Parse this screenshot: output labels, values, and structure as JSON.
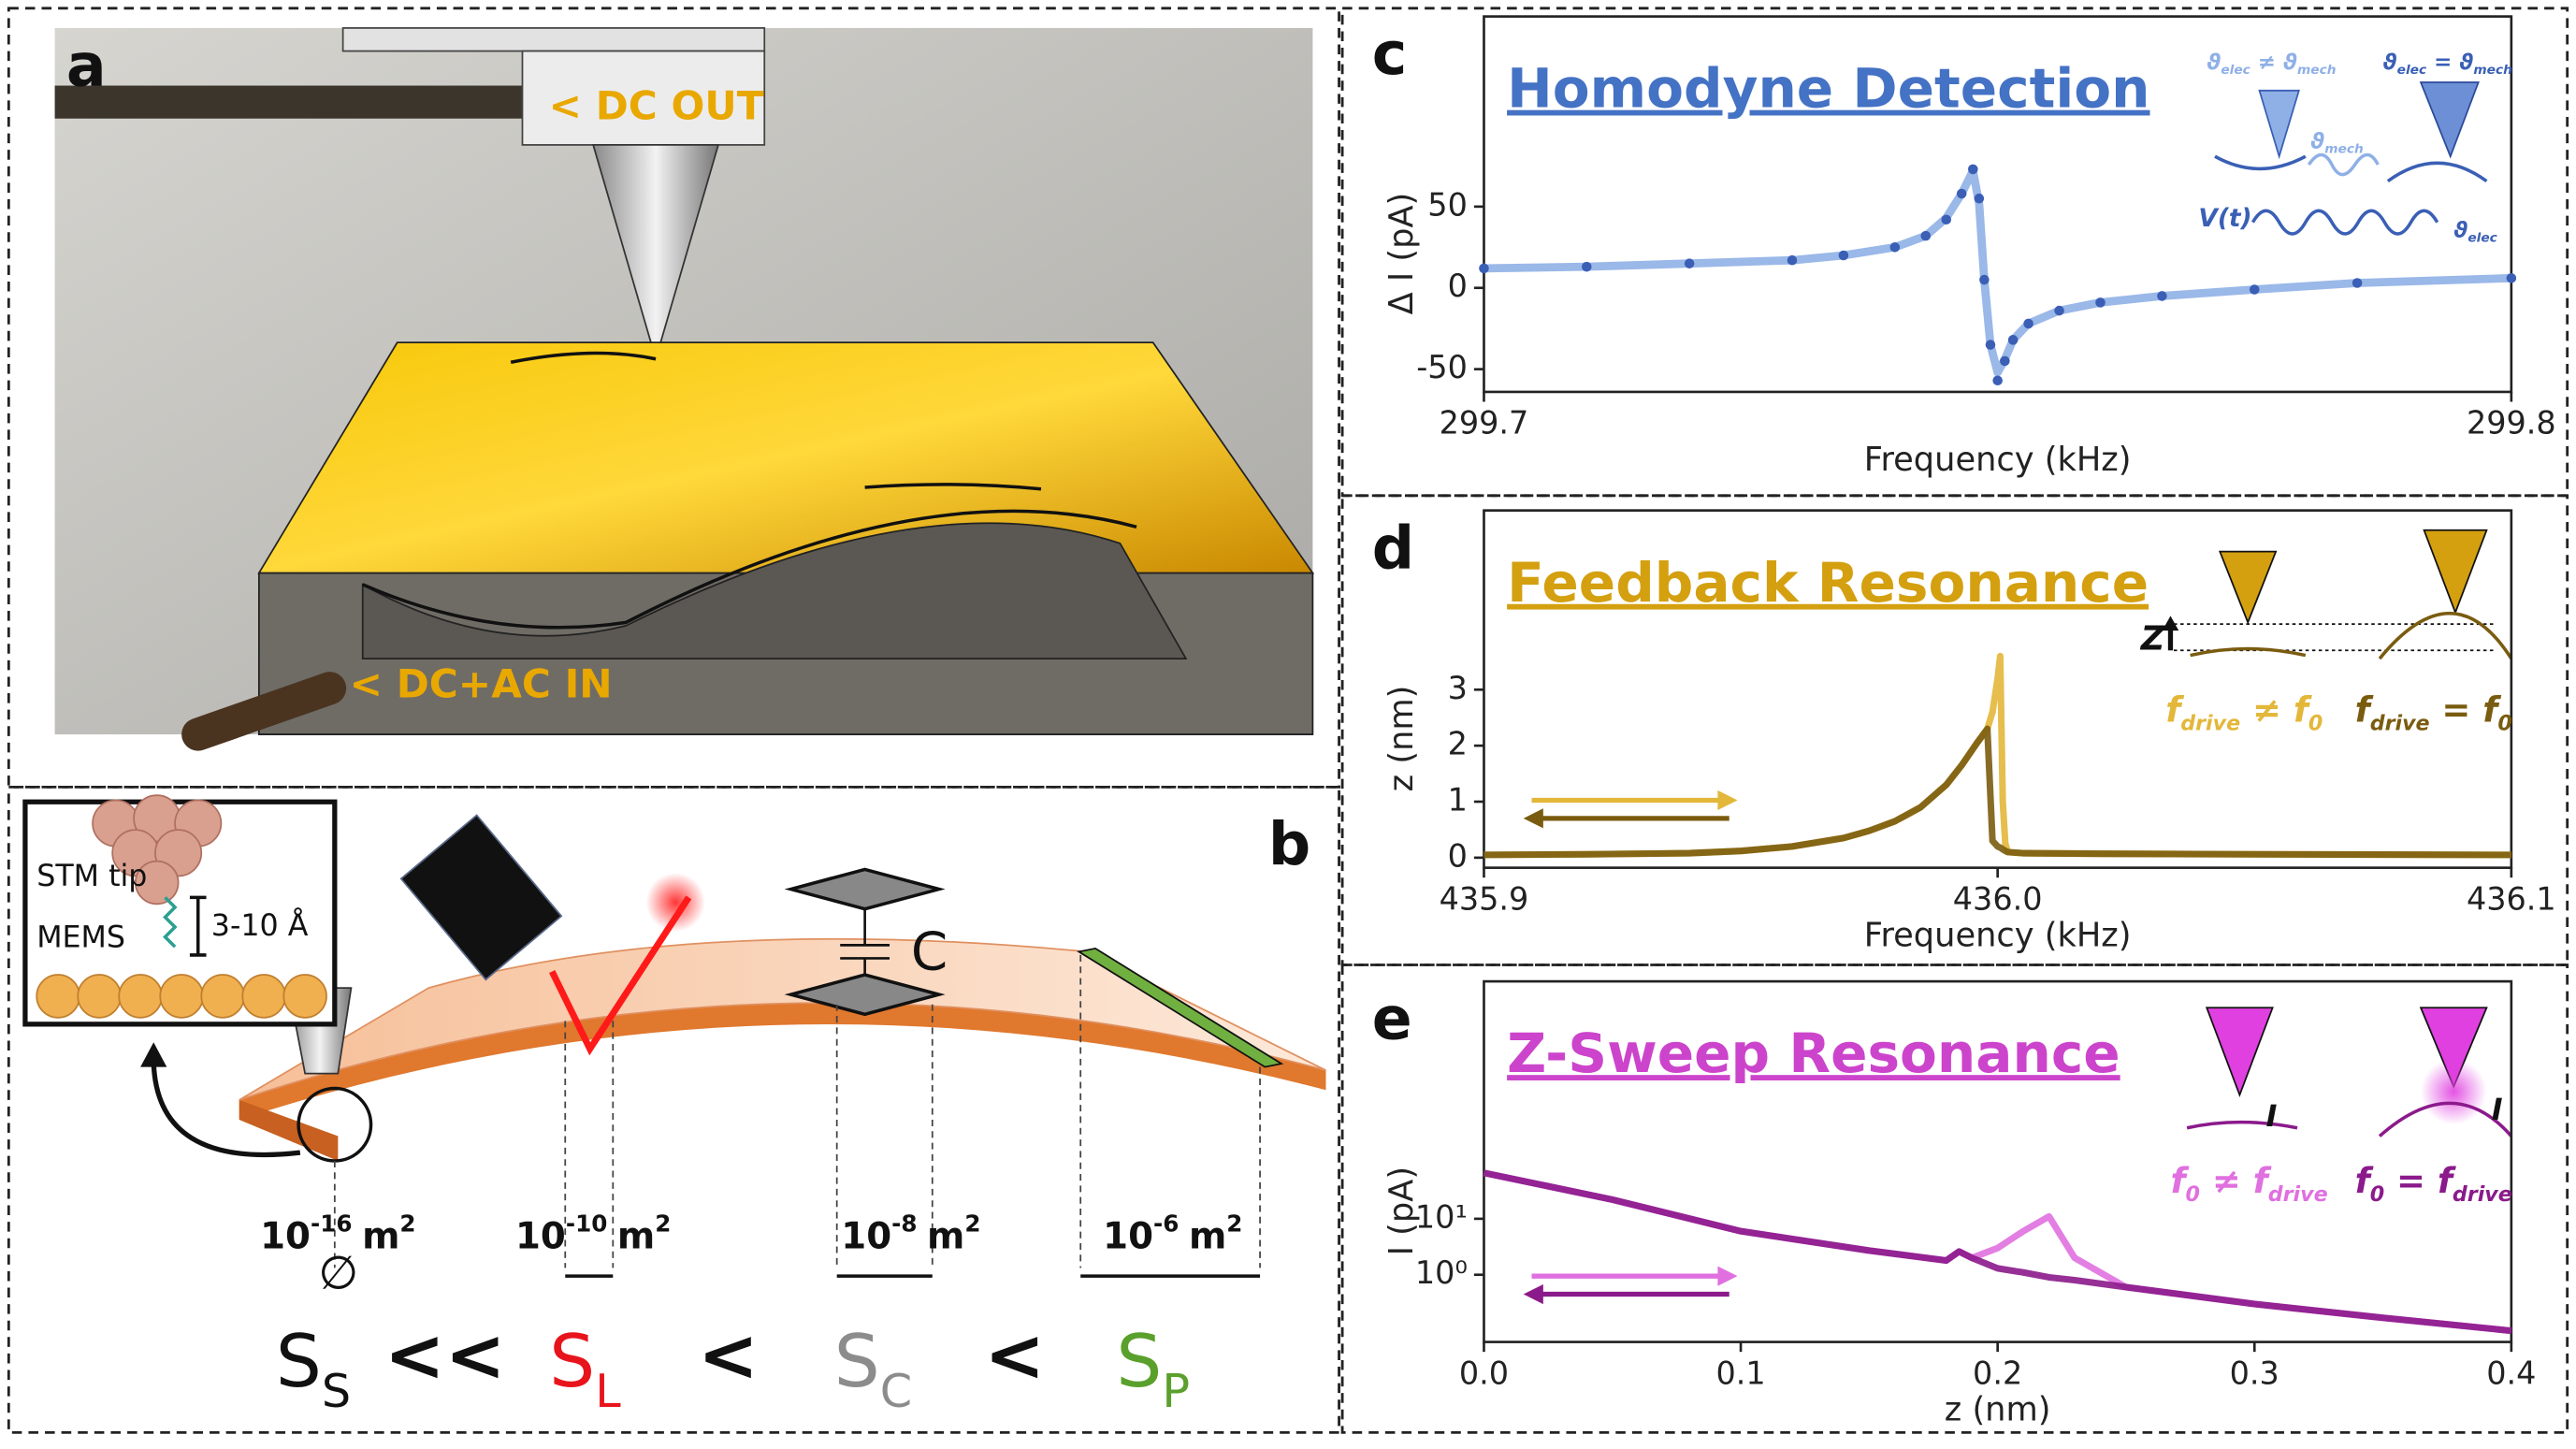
{
  "panel_a": {
    "label": "a",
    "dc_out": "< DC OUT",
    "dc_ac_in": "< DC+AC IN"
  },
  "panel_b": {
    "label": "b",
    "inset": {
      "tip": "STM tip",
      "gap": "3-10 Å",
      "sample": "MEMS"
    },
    "capacitor": "C",
    "diameter": "∅",
    "areas": [
      {
        "base": "10",
        "exp": "-16",
        "unit": "m",
        "unit_exp": "2"
      },
      {
        "base": "10",
        "exp": "-10",
        "unit": "m",
        "unit_exp": "2"
      },
      {
        "base": "10",
        "exp": "-8",
        "unit": "m",
        "unit_exp": "2"
      },
      {
        "base": "10",
        "exp": "-6",
        "unit": "m",
        "unit_exp": "2"
      }
    ],
    "sensors": [
      {
        "symbol": "S",
        "sub": "S",
        "color": "#111111"
      },
      {
        "symbol": "S",
        "sub": "L",
        "color": "#e8141c"
      },
      {
        "symbol": "S",
        "sub": "C",
        "color": "#8c8c8c"
      },
      {
        "symbol": "S",
        "sub": "P",
        "color": "#5aa02c"
      }
    ],
    "relations": [
      "<<",
      "<",
      "<"
    ]
  },
  "chart_data": [
    {
      "type": "line",
      "label": "c",
      "title": "Homodyne Detection",
      "title_color": "#4472c4",
      "xlabel": "Frequency (kHz)",
      "ylabel": "Δ I (pA)",
      "x": [
        299.7,
        299.71,
        299.72,
        299.73,
        299.735,
        299.74,
        299.743,
        299.745,
        299.7465,
        299.7476,
        299.7482,
        299.7487,
        299.7493,
        299.75,
        299.7507,
        299.7515,
        299.753,
        299.756,
        299.76,
        299.766,
        299.775,
        299.785,
        299.8
      ],
      "series": [
        {
          "color": "#8fb0e6",
          "marker": "none",
          "values": [
            12,
            13,
            15,
            17,
            20,
            25,
            32,
            43,
            58,
            72,
            52,
            5,
            -35,
            -52,
            -44,
            -32,
            -22,
            -14,
            -9,
            -5,
            -1,
            3,
            6
          ]
        },
        {
          "color": "#3a5fb5",
          "marker": "o",
          "values": [
            12,
            13,
            15,
            17,
            20,
            25,
            32,
            42,
            58,
            73,
            55,
            5,
            -35,
            -57,
            -45,
            -32,
            -22,
            -14,
            -9,
            -5,
            -1,
            3,
            6
          ]
        }
      ],
      "xlim": [
        299.7,
        299.8
      ],
      "xticks": [
        299.7,
        299.8
      ],
      "ylim": [
        -64,
        167
      ],
      "yticks": [
        -50,
        0,
        50
      ],
      "insets": [
        [
          {
            "t": "ϑ"
          },
          {
            "sub": "elec"
          },
          {
            "t": " ≠ ϑ"
          },
          {
            "sub": "mech"
          }
        ],
        [
          {
            "t": "ϑ"
          },
          {
            "sub": "mech"
          }
        ],
        [
          {
            "t": "ϑ"
          },
          {
            "sub": "elec"
          },
          {
            "t": " = ϑ"
          },
          {
            "sub": "mech"
          }
        ],
        [
          {
            "t": "V(t)"
          }
        ],
        [
          {
            "t": "ϑ"
          },
          {
            "sub": "elec"
          }
        ]
      ]
    },
    {
      "type": "line",
      "label": "d",
      "title": "Feedback Resonance",
      "title_color": "#d4a010",
      "xlabel": "Frequency (kHz)",
      "ylabel": "z (nm)",
      "x": [
        435.9,
        435.92,
        435.94,
        435.95,
        435.96,
        435.97,
        435.975,
        435.98,
        435.985,
        435.99,
        435.993,
        435.996,
        435.998,
        435.999,
        436.0,
        436.0005,
        436.001,
        436.0015,
        436.002,
        436.005,
        436.02,
        436.05,
        436.1
      ],
      "series": [
        {
          "color": "#e3b73a",
          "marker": "none",
          "values": [
            0.05,
            0.06,
            0.08,
            0.12,
            0.2,
            0.35,
            0.48,
            0.65,
            0.9,
            1.3,
            1.65,
            2.05,
            2.3,
            2.6,
            3.2,
            3.6,
            1.0,
            0.25,
            0.1,
            0.08,
            0.07,
            0.06,
            0.05
          ]
        },
        {
          "color": "#7a5c10",
          "marker": "none",
          "values": [
            0.05,
            0.06,
            0.08,
            0.12,
            0.2,
            0.35,
            0.48,
            0.65,
            0.9,
            1.3,
            1.65,
            2.05,
            2.3,
            0.3,
            0.2,
            0.18,
            0.15,
            0.12,
            0.1,
            0.08,
            0.07,
            0.06,
            0.05
          ]
        }
      ],
      "xlim": [
        435.9,
        436.1
      ],
      "xticks": [
        435.9,
        {
          "value": 436,
          "label": "436.0"
        },
        436.1
      ],
      "ylim": [
        -0.18,
        6.2
      ],
      "yticks": [
        0,
        1,
        2,
        3
      ],
      "insets": [
        [
          {
            "t": "Z"
          }
        ],
        [
          {
            "t": "f"
          },
          {
            "sub": "drive"
          },
          {
            "t": " ≠ f"
          },
          {
            "sub": "0"
          }
        ],
        [
          {
            "t": "f"
          },
          {
            "sub": "drive"
          },
          {
            "t": " = f"
          },
          {
            "sub": "0"
          }
        ]
      ]
    },
    {
      "type": "line",
      "label": "e",
      "title": "Z-Sweep Resonance",
      "title_color": "#cc44cc",
      "xlabel": "z (nm)",
      "ylabel": "I (pA)",
      "yscale": "log",
      "x": [
        0,
        0.05,
        0.1,
        0.15,
        0.18,
        0.185,
        0.19,
        0.2,
        0.21,
        0.22,
        0.23,
        0.25,
        0.3,
        0.35,
        0.4
      ],
      "series": [
        {
          "color": "#e070e0",
          "marker": "none",
          "values": [
            66,
            22,
            6,
            2.7,
            1.8,
            2.6,
            2.0,
            3,
            6,
            11,
            2,
            0.6,
            0.3,
            0.17,
            0.1
          ]
        },
        {
          "color": "#8b1a8b",
          "marker": "none",
          "values": [
            66,
            22,
            6,
            2.7,
            1.8,
            2.6,
            2.0,
            1.3,
            1.1,
            0.9,
            0.8,
            0.6,
            0.3,
            0.17,
            0.1
          ]
        }
      ],
      "xlim": [
        0,
        0.4
      ],
      "xticks": [
        {
          "value": 0,
          "label": "0.0"
        },
        0.1,
        0.2,
        0.3,
        0.4
      ],
      "ylim": [
        0.063,
        174000
      ],
      "yticks": [
        {
          "value": 1,
          "label": "10⁰"
        },
        {
          "value": 10,
          "label": "10¹"
        }
      ],
      "insets": [
        [
          {
            "t": "I"
          }
        ],
        [
          {
            "t": "I"
          }
        ],
        [
          {
            "t": "f"
          },
          {
            "sub": "0"
          },
          {
            "t": " ≠ f"
          },
          {
            "sub": "drive"
          }
        ],
        [
          {
            "t": "f"
          },
          {
            "sub": "0"
          },
          {
            "t": " = f"
          },
          {
            "sub": "drive"
          }
        ]
      ]
    }
  ]
}
